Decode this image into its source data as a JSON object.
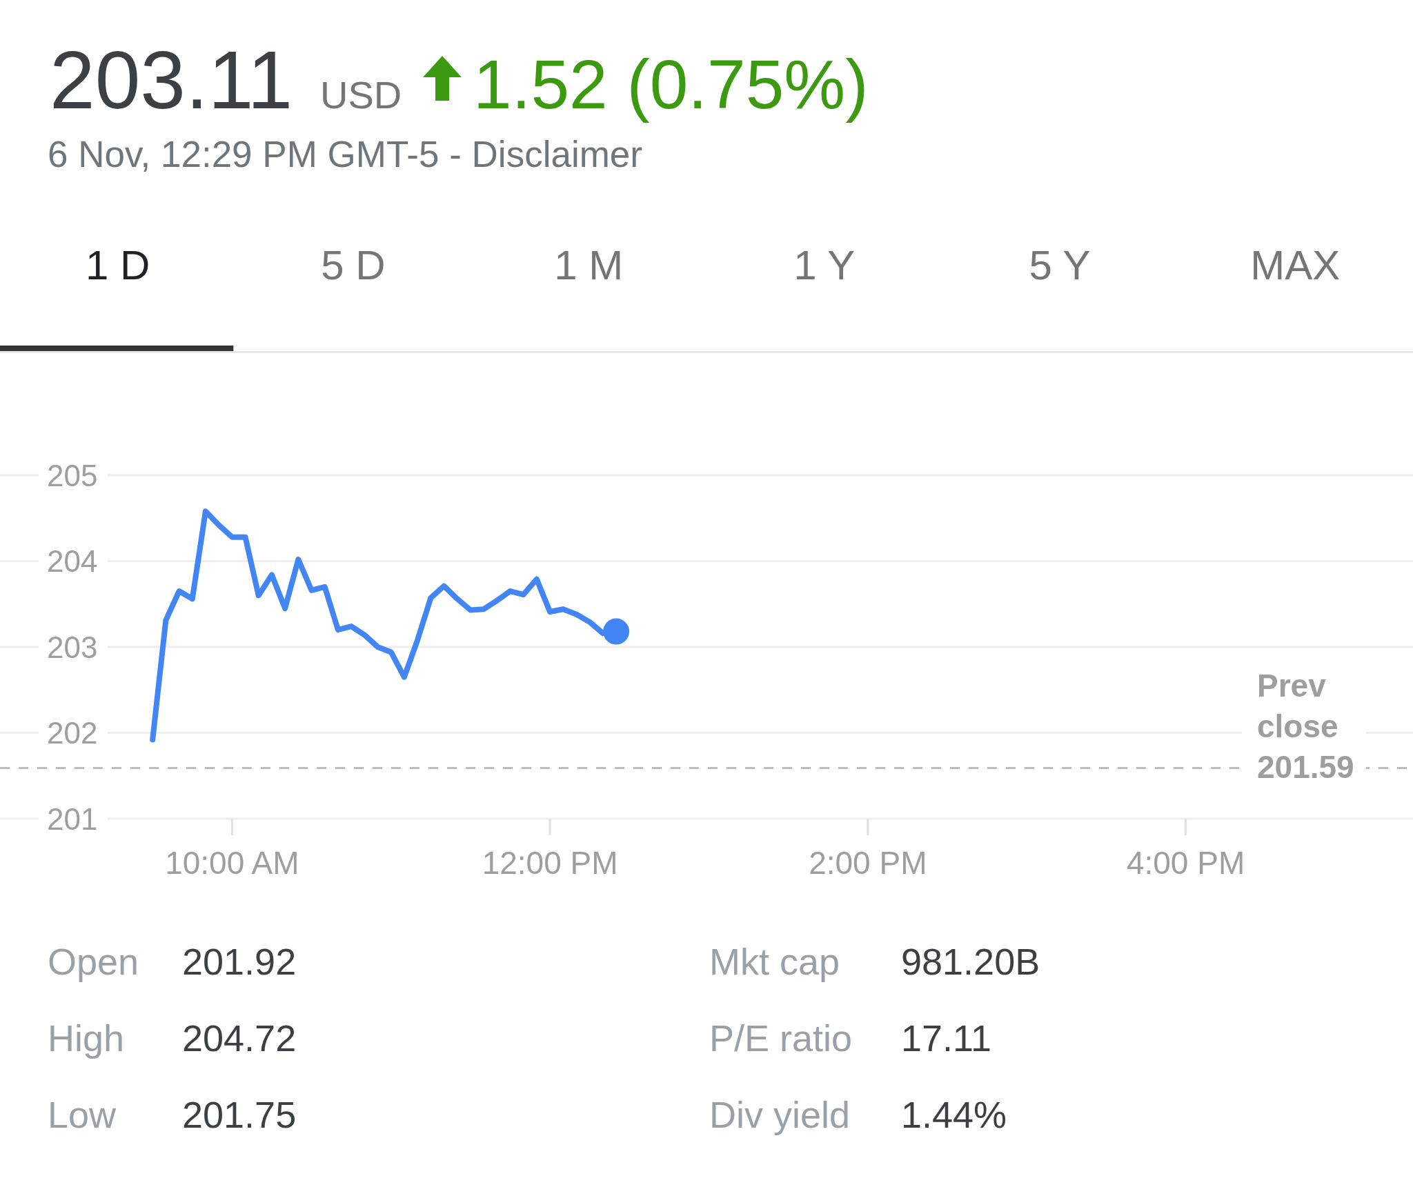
{
  "chart_data": {
    "type": "line",
    "title": "203.11",
    "subtitle": "6 Nov, 12:29 PM GMT-5 - Disclaimer",
    "annotations": [
      "USD",
      "1.52 (0.75%)",
      "1 D",
      "5 D",
      "1 M",
      "1 Y",
      "5 Y",
      "MAX",
      "Open",
      "201.92",
      "High",
      "204.72",
      "Low",
      "201.75",
      "Mkt cap",
      "981.20B",
      "P/E ratio",
      "17.11",
      "Div yield",
      "1.44%"
    ],
    "series": [
      {
        "color": "#4285f4",
        "x": [
          9.5,
          9.5833,
          9.6667,
          9.75,
          9.8333,
          9.9167,
          10,
          10.0833,
          10.1667,
          10.25,
          10.3333,
          10.4167,
          10.5,
          10.5833,
          10.6667,
          10.75,
          10.8333,
          10.9167,
          11,
          11.0833,
          11.1667,
          11.25,
          11.3333,
          11.4167,
          11.5,
          11.5833,
          11.6667,
          11.75,
          11.8333,
          11.9167,
          12,
          12.0833,
          12.1667,
          12.25,
          12.3333
        ],
        "values": [
          201.92,
          203.31,
          203.65,
          203.56,
          204.58,
          204.42,
          204.28,
          204.28,
          203.6,
          203.84,
          203.45,
          204.02,
          203.66,
          203.7,
          203.2,
          203.24,
          203.14,
          203.0,
          202.94,
          202.65,
          203.08,
          203.57,
          203.71,
          203.56,
          203.43,
          203.44,
          203.54,
          203.65,
          203.61,
          203.79,
          203.41,
          203.44,
          203.38,
          203.29,
          203.16
        ]
      },
      {
        "type": "scatter",
        "marker": "circle",
        "color": "#4285f4",
        "x": [
          12.4167
        ],
        "values": [
          203.18
        ]
      }
    ],
    "xlim": [
      8.54,
      17.43
    ],
    "xticks": [
      {
        "value": 10,
        "label": "10:00 AM"
      },
      {
        "value": 12,
        "label": "12:00 PM"
      },
      {
        "value": 14,
        "label": "2:00 PM"
      },
      {
        "value": 16,
        "label": "4:00 PM"
      }
    ],
    "ylim": [
      201,
      205
    ],
    "yticks": [
      201,
      202,
      203,
      204,
      205
    ],
    "grid": "y",
    "ref_lines": [
      {
        "axis": "y",
        "value": 201.59,
        "label": "Prev close 201.59",
        "color": "#bdbdbd",
        "line_style": "dashed"
      }
    ]
  }
}
